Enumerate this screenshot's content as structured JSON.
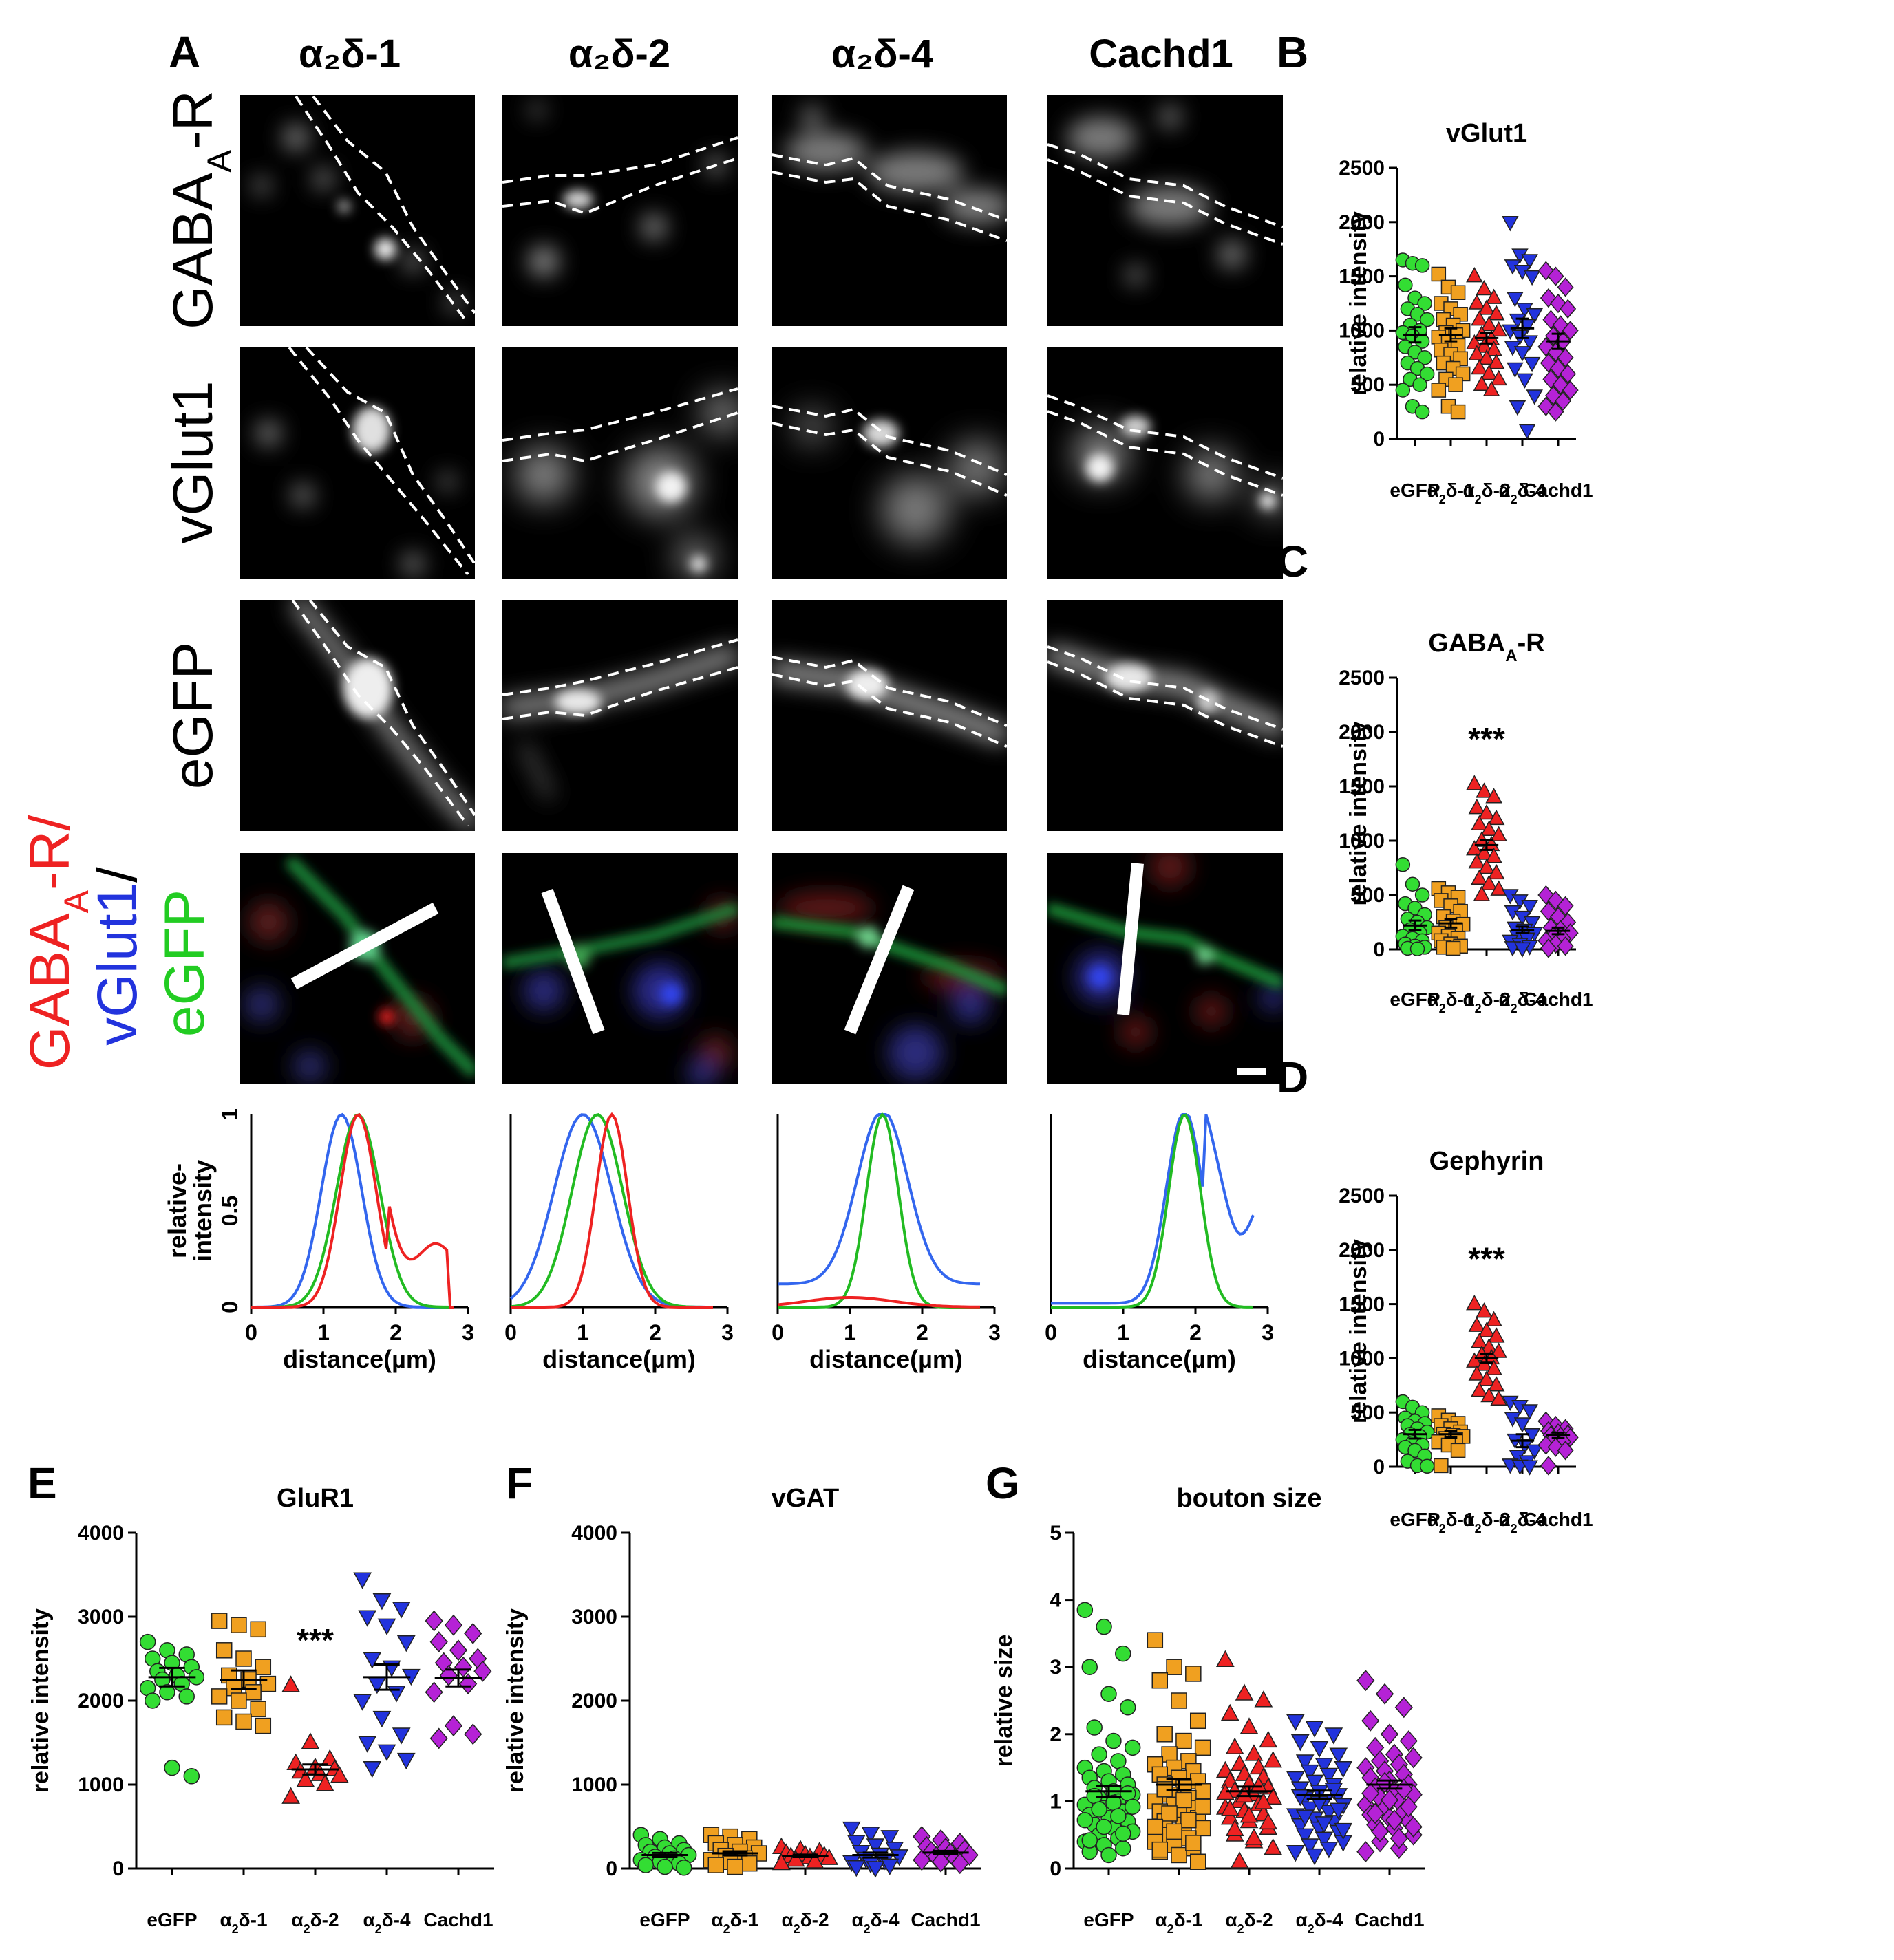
{
  "panel_a": {
    "label": "A",
    "columns": [
      "α₂δ-1",
      "α₂δ-2",
      "α₂δ-4",
      "Cachd1"
    ],
    "rows": [
      "GABA_A-R",
      "vGlut1",
      "eGFP",
      "GABA_A-R/ vGlut1/ eGFP"
    ],
    "row_merge_parts": [
      "GABA",
      "A",
      "-R/",
      "vGlut1",
      "/",
      "eGFP"
    ],
    "row_gaba_parts": [
      "GABA",
      "A",
      "-R"
    ],
    "profile": {
      "xlabel": "distance(µm)",
      "ylabel_line1": "relative-",
      "ylabel_line2": "intensity",
      "xticks": [
        "0",
        "1",
        "2",
        "3"
      ],
      "yticks": [
        "0",
        "0.5",
        "1"
      ]
    }
  },
  "colors": {
    "egfp": "#33dd33",
    "a2d1": "#f0a020",
    "a2d2": "#ee2222",
    "a2d4": "#2233dd",
    "cachd1": "#b522d6",
    "red": "#ee2222",
    "green": "#22bb22",
    "blue": "#3366ee"
  },
  "chart_data": [
    {
      "panel": "B",
      "type": "scatter",
      "title": "vGlut1",
      "ylabel": "relative intensity",
      "categories": [
        "eGFP",
        "α₂δ-1",
        "α₂δ-2",
        "α₂δ-4",
        "Cachd1"
      ],
      "ylim": [
        0,
        2500
      ],
      "yticks": [
        0,
        500,
        1000,
        1500,
        2000,
        2500
      ],
      "means": [
        960,
        960,
        930,
        1020,
        900
      ],
      "sems": [
        70,
        60,
        50,
        90,
        70
      ],
      "significance": [
        "",
        "",
        "",
        "",
        ""
      ],
      "series": [
        {
          "name": "eGFP",
          "values": [
            1650,
            1620,
            1600,
            1420,
            1300,
            1250,
            1200,
            1150,
            1100,
            1050,
            1000,
            980,
            950,
            900,
            850,
            800,
            750,
            700,
            650,
            600,
            550,
            500,
            450,
            300,
            250
          ]
        },
        {
          "name": "α₂δ-1",
          "values": [
            1520,
            1400,
            1350,
            1250,
            1200,
            1150,
            1100,
            1050,
            1000,
            980,
            960,
            940,
            900,
            860,
            820,
            780,
            740,
            700,
            650,
            600,
            550,
            500,
            450,
            300,
            250
          ]
        },
        {
          "name": "α₂δ-2",
          "values": [
            1500,
            1380,
            1300,
            1250,
            1200,
            1150,
            1100,
            1050,
            1000,
            960,
            920,
            880,
            850,
            820,
            780,
            740,
            700,
            650,
            600,
            550,
            500,
            450
          ]
        },
        {
          "name": "α₂δ-4",
          "values": [
            2000,
            1700,
            1650,
            1600,
            1550,
            1500,
            1300,
            1200,
            1150,
            1100,
            1050,
            1000,
            950,
            900,
            850,
            800,
            700,
            650,
            550,
            400,
            300,
            80
          ]
        },
        {
          "name": "Cachd1",
          "values": [
            1550,
            1500,
            1400,
            1300,
            1250,
            1200,
            1100,
            1050,
            1000,
            950,
            900,
            850,
            800,
            750,
            700,
            650,
            600,
            550,
            500,
            450,
            400,
            350,
            300,
            250
          ]
        }
      ]
    },
    {
      "panel": "C",
      "type": "scatter",
      "title": "GABA_A-R",
      "ylabel": "relative intensity",
      "categories": [
        "eGFP",
        "α₂δ-1",
        "α₂δ-2",
        "α₂δ-4",
        "Cachd1"
      ],
      "ylim": [
        0,
        2500
      ],
      "yticks": [
        0,
        500,
        1000,
        1500,
        2000,
        2500
      ],
      "means": [
        220,
        240,
        960,
        180,
        170
      ],
      "sems": [
        45,
        40,
        45,
        30,
        30
      ],
      "significance": [
        "",
        "",
        "***",
        "",
        ""
      ],
      "series": [
        {
          "name": "eGFP",
          "values": [
            780,
            600,
            500,
            420,
            380,
            320,
            280,
            250,
            200,
            180,
            150,
            120,
            100,
            80,
            50,
            30,
            20,
            10,
            5
          ]
        },
        {
          "name": "α₂δ-1",
          "values": [
            560,
            520,
            480,
            450,
            400,
            350,
            300,
            260,
            230,
            200,
            180,
            150,
            120,
            100,
            80,
            50,
            30,
            20,
            10
          ]
        },
        {
          "name": "α₂δ-2",
          "values": [
            1520,
            1450,
            1400,
            1300,
            1250,
            1200,
            1150,
            1100,
            1050,
            1000,
            960,
            920,
            880,
            850,
            800,
            750,
            700,
            650,
            600,
            550,
            500
          ]
        },
        {
          "name": "α₂δ-4",
          "values": [
            500,
            450,
            400,
            350,
            300,
            250,
            200,
            180,
            150,
            120,
            100,
            80,
            50,
            30,
            20,
            10
          ]
        },
        {
          "name": "Cachd1",
          "values": [
            500,
            450,
            400,
            350,
            300,
            250,
            200,
            180,
            150,
            120,
            100,
            80,
            50,
            30,
            10
          ]
        }
      ]
    },
    {
      "panel": "D",
      "type": "scatter",
      "title": "Gephyrin",
      "ylabel": "relative intensity",
      "categories": [
        "eGFP",
        "α₂δ-1",
        "α₂δ-2",
        "α₂δ-4",
        "Cachd1"
      ],
      "ylim": [
        0,
        2500
      ],
      "yticks": [
        0,
        500,
        1000,
        1500,
        2000,
        2500
      ],
      "means": [
        300,
        300,
        1000,
        240,
        290
      ],
      "sems": [
        40,
        30,
        40,
        60,
        25
      ],
      "significance": [
        "",
        "",
        "***",
        "",
        ""
      ],
      "series": [
        {
          "name": "eGFP",
          "values": [
            600,
            550,
            500,
            450,
            420,
            400,
            380,
            350,
            320,
            300,
            280,
            250,
            220,
            200,
            180,
            150,
            100,
            50,
            10,
            5
          ]
        },
        {
          "name": "α₂δ-1",
          "values": [
            470,
            430,
            400,
            380,
            350,
            320,
            300,
            290,
            280,
            260,
            250,
            230,
            200,
            150,
            10
          ]
        },
        {
          "name": "α₂δ-2",
          "values": [
            1500,
            1430,
            1350,
            1300,
            1250,
            1200,
            1150,
            1100,
            1060,
            1030,
            1000,
            970,
            940,
            900,
            850,
            800,
            750,
            700,
            650,
            620
          ]
        },
        {
          "name": "α₂δ-4",
          "values": [
            600,
            560,
            520,
            450,
            400,
            300,
            250,
            200,
            150,
            100,
            50,
            20,
            10,
            5
          ]
        },
        {
          "name": "Cachd1",
          "values": [
            420,
            380,
            350,
            330,
            310,
            300,
            290,
            280,
            270,
            250,
            230,
            200,
            180,
            150,
            10
          ]
        }
      ]
    },
    {
      "panel": "E",
      "type": "scatter",
      "title": "GluR1",
      "ylabel": "relative intensity",
      "categories": [
        "eGFP",
        "α₂δ-1",
        "α₂δ-2",
        "α₂δ-4",
        "Cachd1"
      ],
      "ylim": [
        0,
        4000
      ],
      "yticks": [
        0,
        1000,
        2000,
        3000,
        4000
      ],
      "means": [
        2280,
        2250,
        1180,
        2280,
        2270
      ],
      "sems": [
        110,
        110,
        60,
        150,
        100
      ],
      "significance": [
        "",
        "",
        "***",
        "",
        ""
      ],
      "series": [
        {
          "name": "eGFP",
          "values": [
            2700,
            2600,
            2550,
            2500,
            2450,
            2400,
            2350,
            2300,
            2280,
            2250,
            2200,
            2150,
            2100,
            2050,
            2000,
            1200,
            1100
          ]
        },
        {
          "name": "α₂δ-1",
          "values": [
            2950,
            2900,
            2850,
            2600,
            2500,
            2400,
            2300,
            2250,
            2200,
            2150,
            2100,
            2050,
            2000,
            1900,
            1800,
            1750,
            1700
          ]
        },
        {
          "name": "α₂δ-2",
          "values": [
            2180,
            1500,
            1300,
            1250,
            1200,
            1180,
            1150,
            1120,
            1100,
            1050,
            1000,
            850
          ]
        },
        {
          "name": "α₂δ-4",
          "values": [
            3450,
            3200,
            3100,
            3000,
            2900,
            2700,
            2500,
            2400,
            2300,
            2200,
            2100,
            2000,
            1800,
            1600,
            1500,
            1400,
            1300,
            1200
          ]
        },
        {
          "name": "Cachd1",
          "values": [
            2950,
            2900,
            2800,
            2700,
            2600,
            2500,
            2450,
            2400,
            2350,
            2300,
            2200,
            2100,
            1700,
            1600,
            1550
          ]
        }
      ]
    },
    {
      "panel": "F",
      "type": "scatter",
      "title": "vGAT",
      "ylabel": "relative intensity",
      "categories": [
        "eGFP",
        "α₂δ-1",
        "α₂δ-2",
        "α₂δ-4",
        "Cachd1"
      ],
      "ylim": [
        0,
        4000
      ],
      "yticks": [
        0,
        1000,
        2000,
        3000,
        4000
      ],
      "means": [
        160,
        180,
        150,
        160,
        190
      ],
      "sems": [
        25,
        25,
        15,
        30,
        20
      ],
      "significance": [
        "",
        "",
        "",
        "",
        ""
      ],
      "series": [
        {
          "name": "eGFP",
          "values": [
            400,
            350,
            300,
            280,
            250,
            220,
            200,
            180,
            160,
            140,
            120,
            100,
            80,
            60,
            40,
            20,
            10
          ]
        },
        {
          "name": "α₂δ-1",
          "values": [
            400,
            380,
            350,
            300,
            280,
            250,
            220,
            200,
            180,
            150,
            120,
            100,
            80,
            60,
            40,
            20
          ]
        },
        {
          "name": "α₂δ-2",
          "values": [
            250,
            220,
            200,
            180,
            160,
            150,
            140,
            130,
            120,
            100,
            80,
            60
          ]
        },
        {
          "name": "α₂δ-4",
          "values": [
            480,
            420,
            380,
            320,
            280,
            240,
            200,
            170,
            150,
            120,
            100,
            80,
            60,
            40,
            20,
            10
          ]
        },
        {
          "name": "Cachd1",
          "values": [
            380,
            340,
            300,
            260,
            240,
            220,
            200,
            180,
            160,
            140,
            120,
            100,
            80,
            60
          ]
        }
      ]
    },
    {
      "panel": "G",
      "type": "scatter",
      "title": "bouton size",
      "ylabel": "relative size",
      "categories": [
        "eGFP",
        "α₂δ-1",
        "α₂δ-2",
        "α₂δ-4",
        "Cachd1"
      ],
      "ylim": [
        0,
        5
      ],
      "yticks": [
        0,
        1,
        2,
        3,
        4,
        5
      ],
      "means": [
        1.15,
        1.25,
        1.15,
        1.1,
        1.25
      ],
      "sems": [
        0.08,
        0.08,
        0.07,
        0.06,
        0.06
      ],
      "significance": [
        "",
        "",
        "",
        "",
        ""
      ],
      "series": [
        {
          "name": "eGFP",
          "values": [
            3.85,
            3.6,
            3.2,
            3.0,
            2.6,
            2.4,
            2.1,
            1.9,
            1.8,
            1.7,
            1.6,
            1.5,
            1.45,
            1.4,
            1.35,
            1.3,
            1.25,
            1.2,
            1.15,
            1.1,
            1.05,
            1.0,
            0.95,
            0.9,
            0.85,
            0.8,
            0.75,
            0.7,
            0.65,
            0.6,
            0.55,
            0.5,
            0.45,
            0.4,
            0.35,
            0.3,
            0.25,
            0.2,
            1.12,
            1.08,
            0.98,
            0.92,
            0.88,
            0.78,
            0.72,
            0.62,
            0.52,
            0.42
          ]
        },
        {
          "name": "α₂δ-1",
          "values": [
            3.4,
            3.0,
            2.9,
            2.8,
            2.5,
            2.2,
            2.0,
            1.9,
            1.8,
            1.7,
            1.6,
            1.55,
            1.5,
            1.45,
            1.4,
            1.35,
            1.3,
            1.25,
            1.2,
            1.15,
            1.1,
            1.05,
            1.0,
            0.95,
            0.9,
            0.85,
            0.8,
            0.75,
            0.7,
            0.65,
            0.6,
            0.5,
            0.45,
            0.4,
            0.35,
            0.3,
            0.25,
            0.2,
            0.1,
            1.18,
            1.02,
            0.92,
            0.82,
            0.72,
            0.62,
            0.55,
            0.38,
            0.28
          ]
        },
        {
          "name": "α₂δ-2",
          "values": [
            3.1,
            2.6,
            2.5,
            2.3,
            2.1,
            1.9,
            1.8,
            1.7,
            1.6,
            1.55,
            1.5,
            1.45,
            1.4,
            1.35,
            1.3,
            1.25,
            1.2,
            1.15,
            1.1,
            1.05,
            1.0,
            0.95,
            0.9,
            0.85,
            0.8,
            0.75,
            0.7,
            0.6,
            0.5,
            0.4,
            0.3,
            0.1,
            1.22,
            1.12,
            1.08,
            0.98,
            0.88,
            0.78,
            0.68,
            0.58,
            0.45
          ]
        },
        {
          "name": "α₂δ-4",
          "values": [
            2.2,
            2.1,
            2.0,
            1.9,
            1.8,
            1.7,
            1.6,
            1.55,
            1.5,
            1.45,
            1.4,
            1.35,
            1.3,
            1.25,
            1.2,
            1.15,
            1.1,
            1.05,
            1.0,
            0.95,
            0.9,
            0.85,
            0.8,
            0.75,
            0.7,
            0.65,
            0.6,
            0.55,
            0.5,
            0.45,
            0.4,
            0.35,
            0.3,
            0.25,
            0.2,
            1.18,
            1.08,
            0.98,
            0.88,
            0.78,
            0.68,
            0.58
          ]
        },
        {
          "name": "Cachd1",
          "values": [
            2.8,
            2.6,
            2.4,
            2.2,
            2.0,
            1.9,
            1.8,
            1.7,
            1.65,
            1.6,
            1.55,
            1.5,
            1.45,
            1.4,
            1.35,
            1.3,
            1.25,
            1.2,
            1.15,
            1.1,
            1.05,
            1.0,
            0.95,
            0.9,
            0.85,
            0.8,
            0.75,
            0.7,
            0.65,
            0.6,
            0.5,
            0.4,
            0.3,
            0.25,
            1.28,
            1.18,
            1.12,
            1.02,
            0.92,
            0.82,
            0.72,
            0.62,
            0.55,
            0.45
          ]
        }
      ]
    }
  ]
}
